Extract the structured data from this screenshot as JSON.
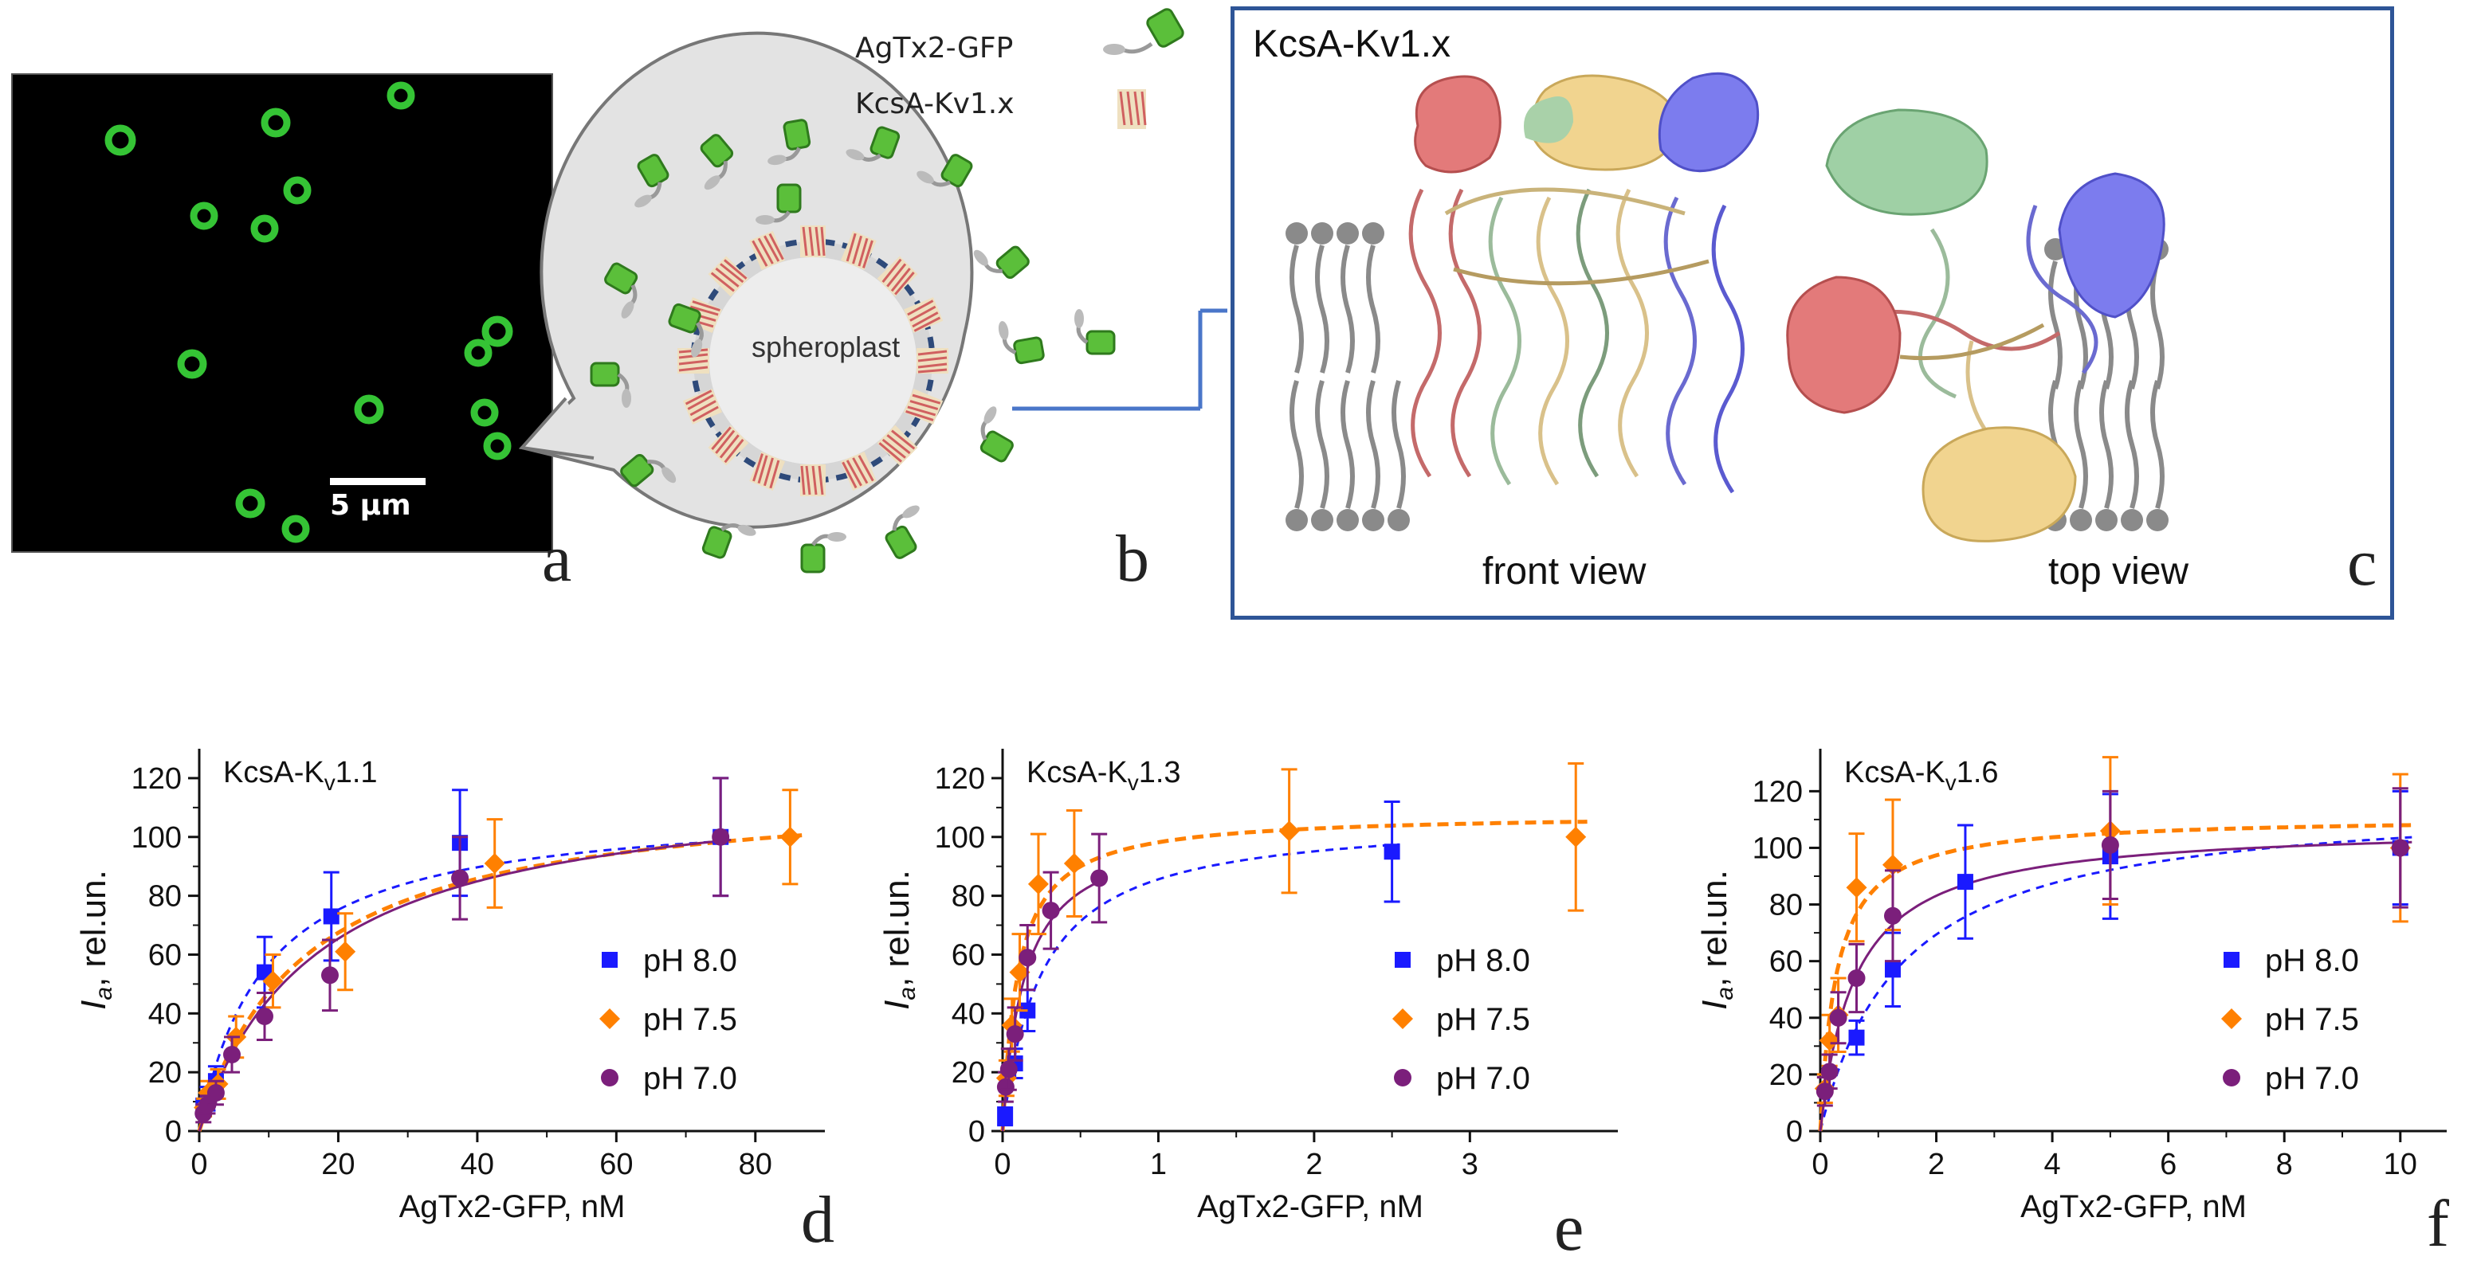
{
  "panel_letters": {
    "a": "a",
    "b": "b",
    "c": "c",
    "d": "d",
    "e": "e",
    "f": "f"
  },
  "panel_a": {
    "scale_label": "5 µm"
  },
  "panel_b": {
    "legend_toxin": "AgTx2-GFP",
    "legend_channel": "KcsA-Kv1.x",
    "spheroplast_label": "spheroplast"
  },
  "panel_c": {
    "title": "KcsA-Kv1.x",
    "front_view": "front view",
    "top_view": "top view"
  },
  "colors": {
    "ph80": "#1a1aff",
    "ph75": "#ff8000",
    "ph70": "#7b1f7b",
    "frame": "#2e5597",
    "gfp": "#35c435"
  },
  "chart_data": [
    {
      "type": "scatter",
      "title": "KcsA-Kv1.1",
      "xlabel": "AgTx2-GFP, nM",
      "ylabel": "Ia, rel.un.",
      "xlim": [
        0,
        90
      ],
      "ylim": [
        0,
        130
      ],
      "xticks": [
        0,
        20,
        40,
        60,
        80
      ],
      "yticks": [
        0,
        20,
        40,
        60,
        80,
        100,
        120
      ],
      "legend_position": "lower-right",
      "series": [
        {
          "name": "pH 8.0",
          "marker": "square",
          "color": "#1a1aff",
          "x": [
            0.6,
            1.2,
            2.4,
            9.4,
            19,
            37.5,
            75
          ],
          "y": [
            8,
            11,
            17,
            54,
            73,
            98,
            100
          ],
          "err": [
            3,
            4,
            5,
            12,
            15,
            18,
            20
          ],
          "fit_kd": 9.5,
          "fit_max": 111
        },
        {
          "name": "pH 7.5",
          "marker": "diamond",
          "color": "#ff8000",
          "x": [
            0.7,
            1.3,
            2.7,
            5.3,
            10.6,
            21,
            42.5,
            85
          ],
          "y": [
            8,
            13,
            16,
            32,
            51,
            61,
            91,
            100
          ],
          "err": [
            3,
            4,
            5,
            7,
            9,
            13,
            15,
            16
          ],
          "fit_kd": 15,
          "fit_max": 118
        },
        {
          "name": "pH 7.0",
          "marker": "circle",
          "color": "#7b1f7b",
          "x": [
            0.6,
            1.2,
            2.4,
            4.7,
            9.4,
            18.8,
            37.5,
            75
          ],
          "y": [
            6,
            9,
            13,
            26,
            39,
            53,
            86,
            100
          ],
          "err": [
            3,
            3,
            4,
            6,
            8,
            12,
            14,
            20
          ],
          "fit_kd": 17,
          "fit_max": 121
        }
      ]
    },
    {
      "type": "scatter",
      "title": "KcsA-Kv1.3",
      "xlabel": "AgTx2-GFP, nM",
      "ylabel": "Ia, rel.un.",
      "xlim": [
        0,
        3.95
      ],
      "ylim": [
        0,
        130
      ],
      "xticks": [
        0,
        1,
        2,
        3
      ],
      "yticks": [
        0,
        20,
        40,
        60,
        80,
        100,
        120
      ],
      "legend_position": "lower-right",
      "series": [
        {
          "name": "pH 8.0",
          "marker": "square",
          "color": "#1a1aff",
          "x": [
            0.016,
            0.08,
            0.16,
            2.5
          ],
          "y": [
            5,
            23,
            41,
            95
          ],
          "err": [
            3,
            5,
            7,
            17
          ],
          "fit_kd": 0.25,
          "fit_max": 107
        },
        {
          "name": "pH 7.5",
          "marker": "diamond",
          "color": "#ff8000",
          "x": [
            0.025,
            0.06,
            0.11,
            0.23,
            0.46,
            1.84,
            3.68
          ],
          "y": [
            18,
            36,
            54,
            84,
            91,
            102,
            100
          ],
          "err": [
            6,
            9,
            13,
            17,
            18,
            21,
            25
          ],
          "fit_kd": 0.1,
          "fit_max": 108
        },
        {
          "name": "pH 7.0",
          "marker": "circle",
          "color": "#7b1f7b",
          "x": [
            0.02,
            0.04,
            0.08,
            0.16,
            0.31,
            0.62
          ],
          "y": [
            15,
            21,
            33,
            59,
            75,
            86
          ],
          "err": [
            5,
            7,
            9,
            11,
            13,
            15
          ],
          "fit_kd": 0.14,
          "fit_max": 104
        }
      ]
    },
    {
      "type": "scatter",
      "title": "KcsA-Kv1.6",
      "xlabel": "AgTx2-GFP, nM",
      "ylabel": "Ia, rel.un.",
      "xlim": [
        0,
        10.8
      ],
      "ylim": [
        0,
        135
      ],
      "xticks": [
        0,
        2,
        4,
        6,
        8,
        10
      ],
      "yticks": [
        0,
        20,
        40,
        60,
        80,
        100,
        120
      ],
      "legend_position": "lower-right",
      "series": [
        {
          "name": "pH 8.0",
          "marker": "square",
          "color": "#1a1aff",
          "x": [
            0.625,
            1.25,
            2.5,
            5,
            10
          ],
          "y": [
            33,
            57,
            88,
            97,
            100
          ],
          "err": [
            6,
            13,
            20,
            22,
            20
          ],
          "fit_kd": 1.4,
          "fit_max": 118
        },
        {
          "name": "pH 7.5",
          "marker": "diamond",
          "color": "#ff8000",
          "x": [
            0.08,
            0.16,
            0.31,
            0.625,
            1.25,
            5,
            10
          ],
          "y": [
            15,
            32,
            41,
            86,
            94,
            106,
            100
          ],
          "err": [
            5,
            9,
            13,
            19,
            23,
            26,
            26
          ],
          "fit_kd": 0.28,
          "fit_max": 111
        },
        {
          "name": "pH 7.0",
          "marker": "circle",
          "color": "#7b1f7b",
          "x": [
            0.08,
            0.16,
            0.31,
            0.625,
            1.25,
            5,
            10
          ],
          "y": [
            14,
            21,
            40,
            54,
            76,
            101,
            100
          ],
          "err": [
            5,
            6,
            9,
            12,
            16,
            19,
            21
          ],
          "fit_kd": 0.6,
          "fit_max": 108
        }
      ]
    }
  ]
}
